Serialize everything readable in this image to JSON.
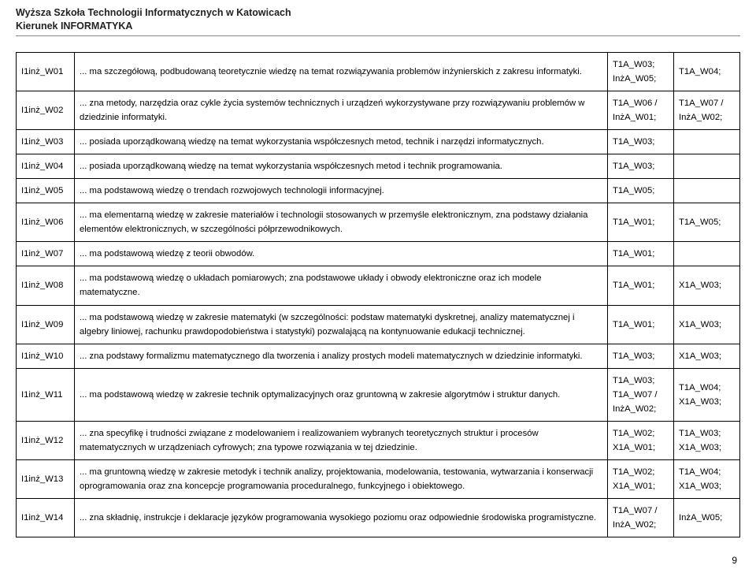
{
  "header": {
    "line1": "Wyższa Szkoła Technologii Informatycznych w Katowicach",
    "line2": "Kierunek INFORMATYKA"
  },
  "rows": [
    {
      "code": "I1inż_W01",
      "desc": "... ma szczegółową, podbudowaną teoretycznie wiedzę na temat rozwiązywania problemów inżynierskich z zakresu informatyki.",
      "ref1": "T1A_W03; InżA_W05;",
      "ref2": "T1A_W04;"
    },
    {
      "code": "I1inż_W02",
      "desc": "... zna metody, narzędzia oraz cykle życia systemów technicznych i urządzeń wykorzystywane przy rozwiązywaniu problemów w dziedzinie informatyki.",
      "ref1": "T1A_W06 / InżA_W01;",
      "ref2": "T1A_W07 / InżA_W02;"
    },
    {
      "code": "I1inż_W03",
      "desc": "... posiada uporządkowaną wiedzę na temat wykorzystania współczesnych metod, technik i narzędzi informatycznych.",
      "ref1": "T1A_W03;",
      "ref2": ""
    },
    {
      "code": "I1inż_W04",
      "desc": "... posiada uporządkowaną wiedzę na temat wykorzystania współczesnych metod i technik programowania.",
      "ref1": "T1A_W03;",
      "ref2": ""
    },
    {
      "code": "I1inż_W05",
      "desc": "... ma podstawową wiedzę o trendach rozwojowych technologii informacyjnej.",
      "ref1": "T1A_W05;",
      "ref2": ""
    },
    {
      "code": "I1inż_W06",
      "desc": "... ma elementarną wiedzę w zakresie materiałów i technologii stosowanych w przemyśle elektronicznym, zna podstawy działania elementów elektronicznych, w szczególności półprzewodnikowych.",
      "ref1": "T1A_W01;",
      "ref2": "T1A_W05;"
    },
    {
      "code": "I1inż_W07",
      "desc": "... ma podstawową wiedzę z teorii obwodów.",
      "ref1": "T1A_W01;",
      "ref2": ""
    },
    {
      "code": "I1inż_W08",
      "desc": "... ma podstawową wiedzę o układach pomiarowych; zna podstawowe układy i obwody elektroniczne oraz ich modele matematyczne.",
      "ref1": "T1A_W01;",
      "ref2": "X1A_W03;"
    },
    {
      "code": "I1inż_W09",
      "desc": "... ma podstawową wiedzę w zakresie matematyki (w szczególności: podstaw matematyki dyskretnej, analizy matematycznej i algebry liniowej, rachunku prawdopodobieństwa i statystyki) pozwalającą na kontynuowanie edukacji technicznej.",
      "ref1": "T1A_W01;",
      "ref2": "X1A_W03;"
    },
    {
      "code": "I1inż_W10",
      "desc": "... zna podstawy formalizmu matematycznego dla tworzenia i analizy prostych modeli matematycznych w dziedzinie informatyki.",
      "ref1": "T1A_W03;",
      "ref2": "X1A_W03;"
    },
    {
      "code": "I1inż_W11",
      "desc": "... ma podstawową wiedzę w zakresie technik optymalizacyjnych oraz gruntowną w zakresie algorytmów i struktur danych.",
      "ref1": "T1A_W03; T1A_W07 / InżA_W02;",
      "ref2": "T1A_W04; X1A_W03;"
    },
    {
      "code": "I1inż_W12",
      "desc": "... zna specyfikę i trudności związane z modelowaniem i realizowaniem wybranych teoretycznych struktur i procesów matematycznych w urządzeniach cyfrowych; zna typowe rozwiązania w tej dziedzinie.",
      "ref1": "T1A_W02; X1A_W01;",
      "ref2": "T1A_W03; X1A_W03;"
    },
    {
      "code": "I1inż_W13",
      "desc": "... ma gruntowną wiedzę w zakresie metodyk i technik analizy, projektowania, modelowania, testowania, wytwarzania i konserwacji oprogramowania oraz zna koncepcje programowania proceduralnego, funkcyjnego i obiektowego.",
      "ref1": "T1A_W02; X1A_W01;",
      "ref2": "T1A_W04; X1A_W03;"
    },
    {
      "code": "I1inż_W14",
      "desc": "... zna składnię, instrukcje i deklaracje języków programowania wysokiego poziomu oraz odpowiednie środowiska programistyczne.",
      "ref1": "T1A_W07 / InżA_W02;",
      "ref2": "InżA_W05;"
    }
  ],
  "pageNumber": "9"
}
